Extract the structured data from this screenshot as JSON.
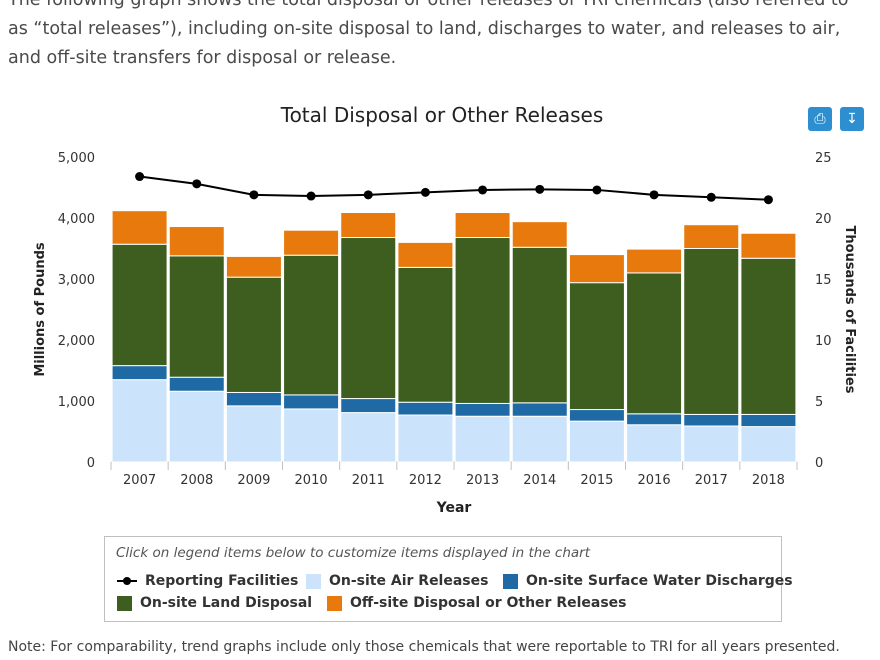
{
  "intro_text": "The following graph shows the total disposal or other releases of TRI chemicals (also referred to as “total releases”), including on-site disposal to land, discharges to water, and releases to air, and off-site transfers for disposal or release.",
  "toolbar": {
    "print_icon": "printer-icon",
    "download_icon": "download-icon"
  },
  "legend": {
    "hint": "Click on legend items below to customize items displayed in the chart",
    "items": [
      "Reporting Facilities",
      "On-site Air Releases",
      "On-site Surface Water Discharges",
      "On-site Land Disposal",
      "Off-site Disposal or Other Releases"
    ]
  },
  "note": "Note: For comparability, trend graphs include only those chemicals that were reportable to TRI for all years presented.",
  "chart_data": {
    "type": "bar",
    "stacked": true,
    "title": "Total Disposal or Other Releases",
    "xlabel": "Year",
    "ylabel": "Millions of Pounds",
    "y2label": "Thousands of Facilities",
    "ylim": [
      0,
      5000
    ],
    "y2lim": [
      0,
      25
    ],
    "yticks": [
      "0",
      "1,000",
      "2,000",
      "3,000",
      "4,000",
      "5,000"
    ],
    "y2ticks": [
      "0",
      "5",
      "10",
      "15",
      "20",
      "25"
    ],
    "categories": [
      "2007",
      "2008",
      "2009",
      "2010",
      "2011",
      "2012",
      "2013",
      "2014",
      "2015",
      "2016",
      "2017",
      "2018"
    ],
    "series": [
      {
        "name": "On-site Air Releases",
        "color": "#cce4fb",
        "values": [
          1350,
          1160,
          920,
          870,
          810,
          770,
          750,
          750,
          670,
          610,
          590,
          580
        ]
      },
      {
        "name": "On-site Surface Water Discharges",
        "color": "#1f6aa5",
        "values": [
          230,
          230,
          220,
          230,
          230,
          210,
          210,
          220,
          190,
          180,
          190,
          200
        ]
      },
      {
        "name": "On-site Land Disposal",
        "color": "#3d5e1f",
        "values": [
          1990,
          1990,
          1890,
          2290,
          2640,
          2210,
          2720,
          2550,
          2080,
          2310,
          2720,
          2560
        ]
      },
      {
        "name": "Off-site Disposal or Other Releases",
        "color": "#e8790c",
        "values": [
          550,
          480,
          340,
          410,
          410,
          410,
          410,
          420,
          460,
          390,
          390,
          410
        ]
      }
    ],
    "line_series": {
      "name": "Reporting Facilities",
      "axis": "right",
      "color": "#000000",
      "values": [
        23.4,
        22.8,
        21.9,
        21.8,
        21.9,
        22.1,
        22.3,
        22.35,
        22.3,
        21.9,
        21.7,
        21.5
      ]
    }
  }
}
